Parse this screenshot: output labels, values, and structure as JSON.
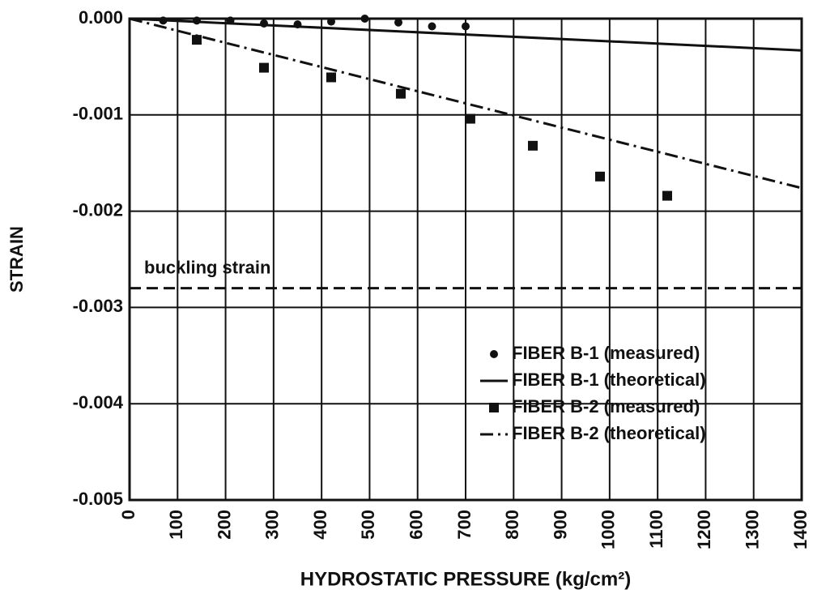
{
  "chart_data": {
    "type": "scatter",
    "xlabel": "HYDROSTATIC PRESSURE (kg/cm²)",
    "ylabel": "STRAIN",
    "xlim": [
      0,
      1400
    ],
    "xticks": [
      0,
      100,
      200,
      300,
      400,
      500,
      600,
      700,
      800,
      900,
      1000,
      1100,
      1200,
      1300,
      1400
    ],
    "ylim": [
      -0.005,
      0
    ],
    "yticks": [
      {
        "value": 0,
        "label": "0.000"
      },
      -0.001,
      -0.002,
      -0.003,
      -0.004,
      -0.005
    ],
    "grid": true,
    "legend": "lower right",
    "series": [
      {
        "name": "FIBER B-1 (measured)",
        "color": "#111111",
        "mark": "circle",
        "x": [
          70,
          140,
          210,
          280,
          350,
          420,
          490,
          560,
          630,
          700
        ],
        "values": [
          -2e-05,
          -2e-05,
          -2e-05,
          -5e-05,
          -6e-05,
          -3e-05,
          0,
          -4e-05,
          -8e-05,
          -8e-05
        ]
      },
      {
        "name": "FIBER B-1 (theoretical)",
        "color": "#111111",
        "mark": "solid",
        "x": [
          0,
          1400
        ],
        "values": [
          0,
          -0.00033
        ]
      },
      {
        "name": "FIBER B-2 (measured)",
        "color": "#111111",
        "mark": "square",
        "x": [
          140,
          280,
          420,
          565,
          710,
          840,
          980,
          1120
        ],
        "values": [
          -0.00022,
          -0.00051,
          -0.00061,
          -0.00078,
          -0.00104,
          -0.00132,
          -0.00164,
          -0.00184
        ]
      },
      {
        "name": "FIBER B-2 (theoretical)",
        "color": "#111111",
        "mark": "dashdot",
        "x": [
          0,
          1400
        ],
        "values": [
          0,
          -0.00176
        ]
      }
    ],
    "annotations": [
      {
        "text": "buckling strain",
        "value": -0.0028
      }
    ]
  }
}
